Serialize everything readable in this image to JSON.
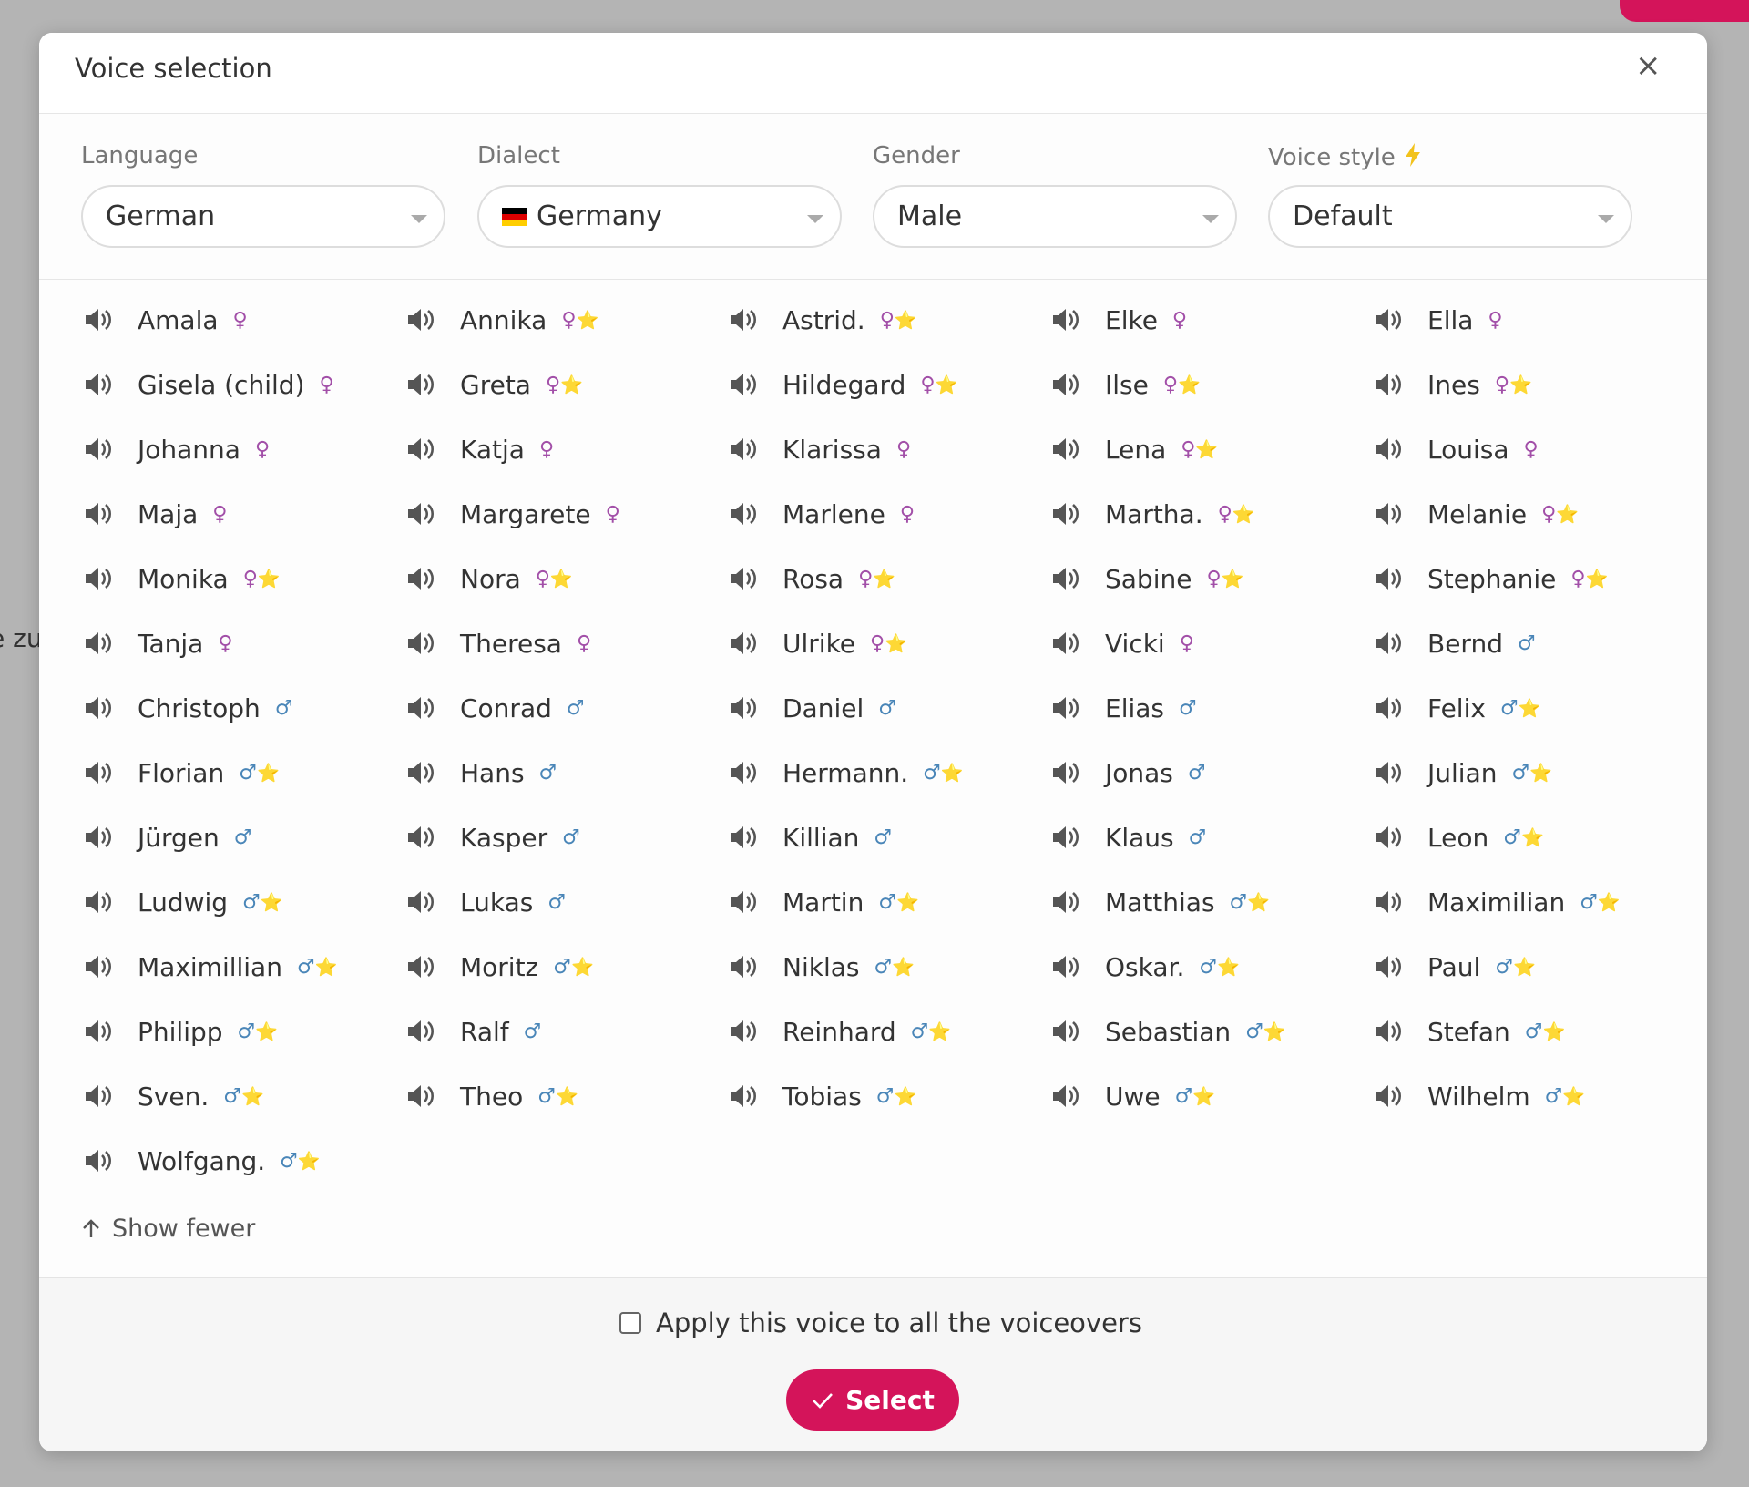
{
  "background": {
    "fragment": "e zu"
  },
  "modal": {
    "title": "Voice selection",
    "close": "×",
    "filters": [
      {
        "label": "Language",
        "value": "German"
      },
      {
        "label": "Dialect",
        "value": "Germany"
      },
      {
        "label": "Gender",
        "value": "Male"
      },
      {
        "label": "Voice style",
        "value": "Default"
      }
    ],
    "voices": [
      {
        "name": "Amala",
        "gender": "♀"
      },
      {
        "name": "Annika",
        "gender": "♀",
        "star": "⭐"
      },
      {
        "name": "Astrid.",
        "gender": "♀",
        "star": "⭐"
      },
      {
        "name": "Elke",
        "gender": "♀"
      },
      {
        "name": "Ella",
        "gender": "♀"
      },
      {
        "name": "Gisela (child)",
        "gender": "♀"
      },
      {
        "name": "Greta",
        "gender": "♀",
        "star": "⭐"
      },
      {
        "name": "Hildegard",
        "gender": "♀",
        "star": "⭐"
      },
      {
        "name": "Ilse",
        "gender": "♀",
        "star": "⭐"
      },
      {
        "name": "Ines",
        "gender": "♀",
        "star": "⭐"
      },
      {
        "name": "Johanna",
        "gender": "♀"
      },
      {
        "name": "Katja",
        "gender": "♀"
      },
      {
        "name": "Klarissa",
        "gender": "♀"
      },
      {
        "name": "Lena",
        "gender": "♀",
        "star": "⭐"
      },
      {
        "name": "Louisa",
        "gender": "♀"
      },
      {
        "name": "Maja",
        "gender": "♀"
      },
      {
        "name": "Margarete",
        "gender": "♀"
      },
      {
        "name": "Marlene",
        "gender": "♀"
      },
      {
        "name": "Martha.",
        "gender": "♀",
        "star": "⭐"
      },
      {
        "name": "Melanie",
        "gender": "♀",
        "star": "⭐"
      },
      {
        "name": "Monika",
        "gender": "♀",
        "star": "⭐"
      },
      {
        "name": "Nora",
        "gender": "♀",
        "star": "⭐"
      },
      {
        "name": "Rosa",
        "gender": "♀",
        "star": "⭐"
      },
      {
        "name": "Sabine",
        "gender": "♀",
        "star": "⭐"
      },
      {
        "name": "Stephanie",
        "gender": "♀",
        "star": "⭐"
      },
      {
        "name": "Tanja",
        "gender": "♀"
      },
      {
        "name": "Theresa",
        "gender": "♀"
      },
      {
        "name": "Ulrike",
        "gender": "♀",
        "star": "⭐"
      },
      {
        "name": "Vicki",
        "gender": "♀"
      },
      {
        "name": "Bernd",
        "gender": "♂"
      },
      {
        "name": "Christoph",
        "gender": "♂"
      },
      {
        "name": "Conrad",
        "gender": "♂"
      },
      {
        "name": "Daniel",
        "gender": "♂"
      },
      {
        "name": "Elias",
        "gender": "♂"
      },
      {
        "name": "Felix",
        "gender": "♂",
        "star": "⭐"
      },
      {
        "name": "Florian",
        "gender": "♂",
        "star": "⭐"
      },
      {
        "name": "Hans",
        "gender": "♂"
      },
      {
        "name": "Hermann.",
        "gender": "♂",
        "star": "⭐"
      },
      {
        "name": "Jonas",
        "gender": "♂"
      },
      {
        "name": "Julian",
        "gender": "♂",
        "star": "⭐"
      },
      {
        "name": "Jürgen",
        "gender": "♂"
      },
      {
        "name": "Kasper",
        "gender": "♂"
      },
      {
        "name": "Killian",
        "gender": "♂"
      },
      {
        "name": "Klaus",
        "gender": "♂"
      },
      {
        "name": "Leon",
        "gender": "♂",
        "star": "⭐"
      },
      {
        "name": "Ludwig",
        "gender": "♂",
        "star": "⭐"
      },
      {
        "name": "Lukas",
        "gender": "♂"
      },
      {
        "name": "Martin",
        "gender": "♂",
        "star": "⭐"
      },
      {
        "name": "Matthias",
        "gender": "♂",
        "star": "⭐"
      },
      {
        "name": "Maximilian",
        "gender": "♂",
        "star": "⭐"
      },
      {
        "name": "Maximillian",
        "gender": "♂",
        "star": "⭐"
      },
      {
        "name": "Moritz",
        "gender": "♂",
        "star": "⭐"
      },
      {
        "name": "Niklas",
        "gender": "♂",
        "star": "⭐"
      },
      {
        "name": "Oskar.",
        "gender": "♂",
        "star": "⭐"
      },
      {
        "name": "Paul",
        "gender": "♂",
        "star": "⭐"
      },
      {
        "name": "Philipp",
        "gender": "♂",
        "star": "⭐"
      },
      {
        "name": "Ralf",
        "gender": "♂"
      },
      {
        "name": "Reinhard",
        "gender": "♂",
        "star": "⭐"
      },
      {
        "name": "Sebastian",
        "gender": "♂",
        "star": "⭐"
      },
      {
        "name": "Stefan",
        "gender": "♂",
        "star": "⭐"
      },
      {
        "name": "Sven.",
        "gender": "♂",
        "star": "⭐"
      },
      {
        "name": "Theo",
        "gender": "♂",
        "star": "⭐"
      },
      {
        "name": "Tobias",
        "gender": "♂",
        "star": "⭐"
      },
      {
        "name": "Uwe",
        "gender": "♂",
        "star": "⭐"
      },
      {
        "name": "Wilhelm",
        "gender": "♂",
        "star": "⭐"
      },
      {
        "name": "Wolfgang.",
        "gender": "♂",
        "star": "⭐"
      }
    ],
    "show_fewer": "Show fewer",
    "apply_all": "Apply this voice to all the voiceovers",
    "select": "Select"
  }
}
